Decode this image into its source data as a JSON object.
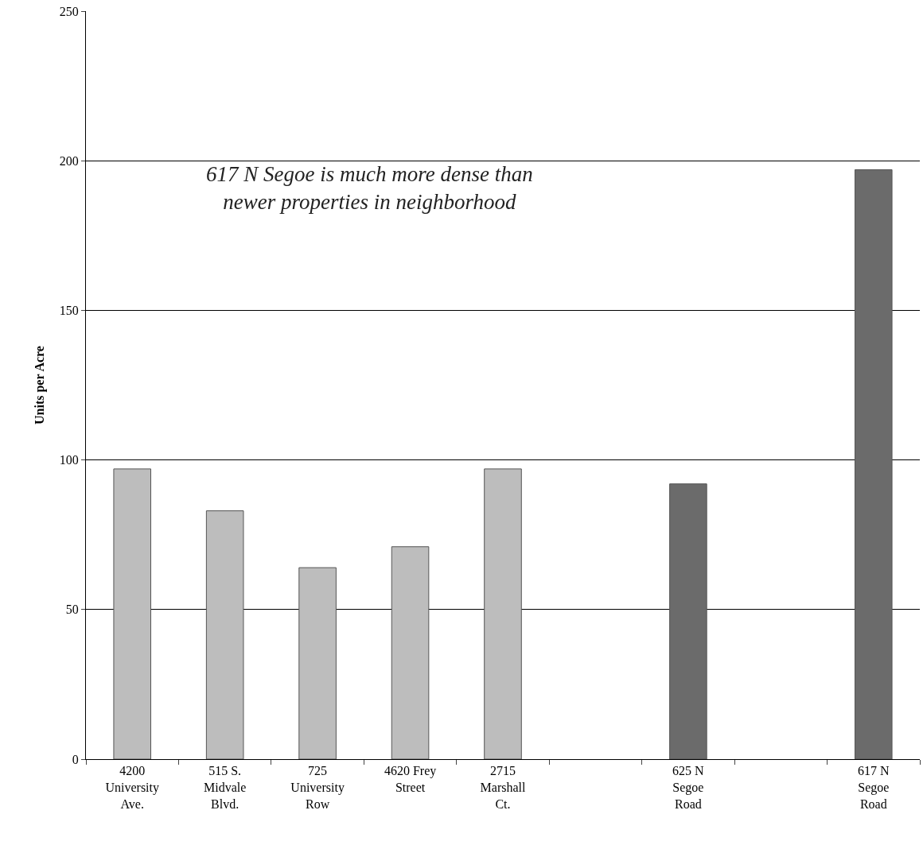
{
  "chart_data": {
    "type": "bar",
    "ylabel": "Units per Acre",
    "annotations": [
      "617 N Segoe is much more dense than\nnewer properties in neighborhood"
    ],
    "categories": [
      "4200\nUniversity\nAve.",
      "515 S.\nMidvale\nBlvd.",
      "725\nUniversity\nRow",
      "4620 Frey\nStreet",
      "2715\nMarshall\nCt.",
      null,
      "625 N\nSegoe\nRoad",
      null,
      "617 N\nSegoe\nRoad"
    ],
    "values": [
      97,
      83,
      64,
      71,
      97,
      null,
      92,
      null,
      197
    ],
    "colors": [
      "#bdbdbd",
      "#bdbdbd",
      "#bdbdbd",
      "#bdbdbd",
      "#bdbdbd",
      null,
      "#6b6b6b",
      null,
      "#6b6b6b"
    ],
    "ylim": [
      0,
      250
    ],
    "yticks": [
      0,
      50,
      100,
      150,
      200,
      250
    ],
    "grid": "y"
  }
}
